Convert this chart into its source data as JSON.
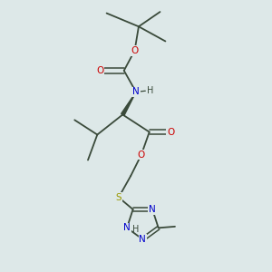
{
  "bg_color": "#dde8e8",
  "bond_color": "#3a4a3a",
  "atom_colors": {
    "C": "#3a4a3a",
    "N": "#0000cc",
    "O": "#cc0000",
    "S": "#999900",
    "H": "#3a4a3a"
  },
  "bond_lw": 1.3,
  "font_size": 7.5
}
